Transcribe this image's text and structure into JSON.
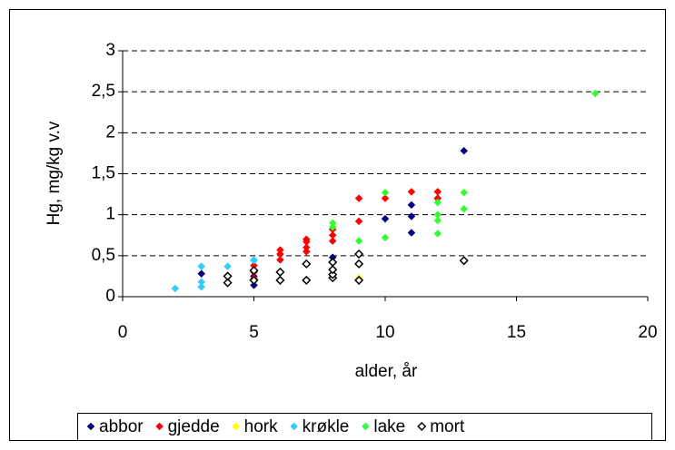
{
  "chart_data": {
    "type": "scatter",
    "xlabel": "alder, år",
    "ylabel": "Hg, mg/kg v.v",
    "xlim": [
      0,
      20
    ],
    "xticks": [
      0,
      5,
      10,
      15,
      20
    ],
    "ylim": [
      0,
      3
    ],
    "yticks": [
      0,
      {
        "value": 0.5,
        "label": "0,5"
      },
      1,
      {
        "value": 1.5,
        "label": "1,5"
      },
      2,
      {
        "value": 2.5,
        "label": "2,5"
      },
      3
    ],
    "grid": true,
    "legend": "bottom",
    "series": [
      {
        "name": "abbor",
        "color": "#000080",
        "filled": true,
        "x": [
          3,
          5,
          5,
          5,
          8,
          9,
          10,
          11,
          11,
          11,
          12,
          13
        ],
        "values": [
          0.28,
          0.14,
          0.25,
          0.3,
          0.48,
          0.2,
          0.95,
          1.12,
          0.98,
          0.78,
          1.2,
          1.78
        ]
      },
      {
        "name": "gjedde",
        "color": "#ff0000",
        "filled": true,
        "x": [
          5,
          5,
          5,
          6,
          6,
          6,
          7,
          7,
          7,
          7,
          8,
          8,
          8,
          9,
          9,
          10,
          11,
          12,
          12
        ],
        "values": [
          0.22,
          0.3,
          0.38,
          0.45,
          0.52,
          0.57,
          0.55,
          0.67,
          0.7,
          0.6,
          0.68,
          0.75,
          0.82,
          0.92,
          1.2,
          1.2,
          1.28,
          1.28,
          1.2
        ]
      },
      {
        "name": "hork",
        "color": "#ffff00",
        "filled": true,
        "x": [
          9
        ],
        "values": [
          0.23
        ]
      },
      {
        "name": "krøkle",
        "color": "#33ccff",
        "filled": true,
        "x": [
          2,
          3,
          3,
          3,
          4,
          5,
          5
        ],
        "values": [
          0.1,
          0.12,
          0.18,
          0.37,
          0.37,
          0.44,
          0.45
        ]
      },
      {
        "name": "lake",
        "color": "#33ff33",
        "filled": true,
        "x": [
          8,
          8,
          9,
          10,
          10,
          12,
          12,
          12,
          12,
          13,
          13,
          18
        ],
        "values": [
          0.85,
          0.9,
          0.68,
          0.72,
          1.27,
          0.77,
          0.93,
          1.0,
          1.15,
          1.07,
          1.27,
          2.48
        ]
      },
      {
        "name": "mort",
        "color": "#000000",
        "filled": false,
        "x": [
          4,
          4,
          5,
          5,
          6,
          6,
          7,
          7,
          8,
          8,
          8,
          8,
          9,
          9,
          9,
          13
        ],
        "values": [
          0.17,
          0.25,
          0.2,
          0.32,
          0.2,
          0.3,
          0.2,
          0.4,
          0.23,
          0.27,
          0.33,
          0.42,
          0.2,
          0.4,
          0.52,
          0.44
        ]
      }
    ]
  }
}
